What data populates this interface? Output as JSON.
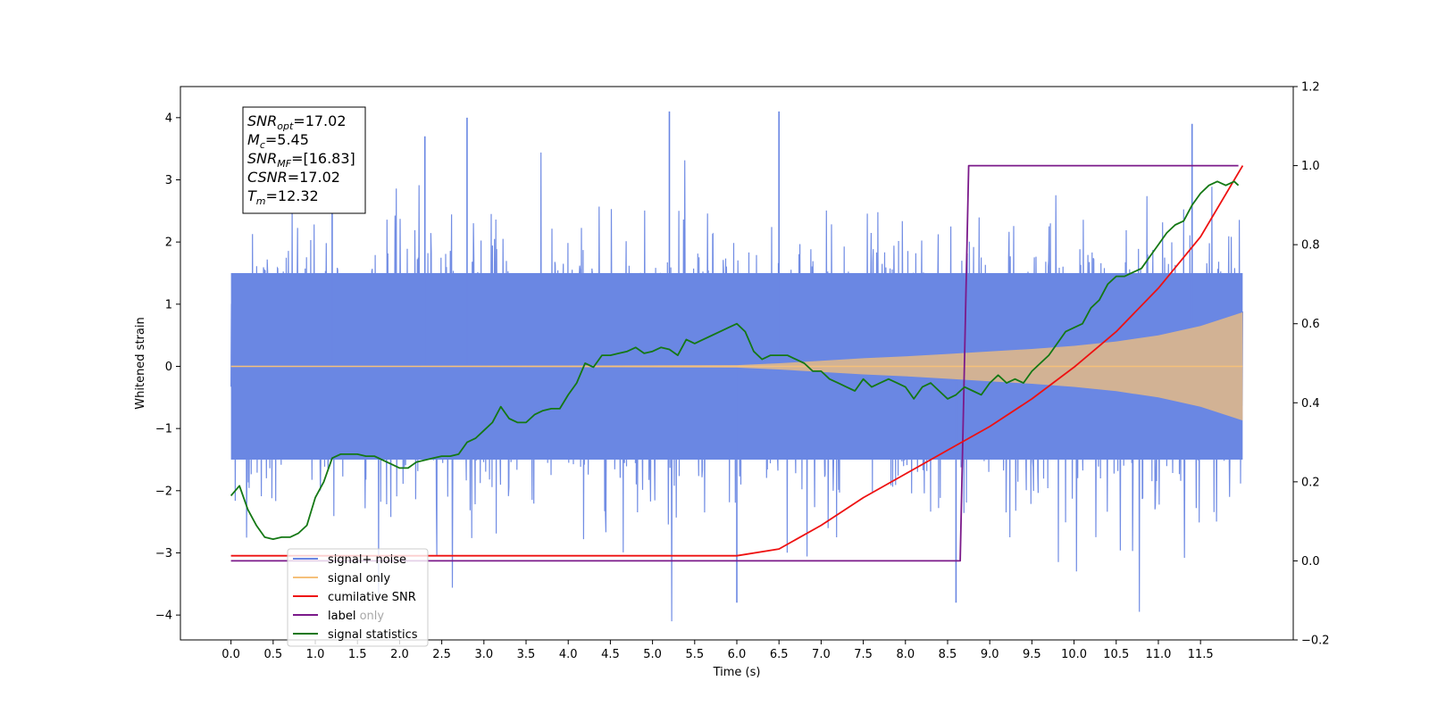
{
  "chart_data": {
    "type": "line",
    "title": "",
    "xlabel": "Time (s)",
    "ylabel": "Whitened strain",
    "xlim": [
      -0.6,
      12.6
    ],
    "ylim": [
      -4.4,
      4.5
    ],
    "y2lim": [
      -0.2,
      1.2
    ],
    "x_ticks": [
      0.0,
      0.5,
      1.0,
      1.5,
      2.0,
      2.5,
      3.0,
      3.5,
      4.0,
      4.5,
      5.0,
      5.5,
      6.0,
      6.5,
      7.0,
      7.5,
      8.0,
      8.5,
      9.0,
      9.5,
      10.0,
      10.5,
      11.0,
      11.5
    ],
    "x_tick_labels": [
      "0.0",
      "0.5",
      "1.0",
      "1.5",
      "2.0",
      "2.5",
      "3.0",
      "3.5",
      "4.0",
      "4.5",
      "5.0",
      "5.5",
      "6.0",
      "6.5",
      "7.0",
      "7.5",
      "8.0",
      "8.5",
      "9.0",
      "9.5",
      "10.0",
      "10.5",
      "11.0",
      "11.5"
    ],
    "y_ticks": [
      -4,
      -3,
      -2,
      -1,
      0,
      1,
      2,
      3,
      4
    ],
    "y_tick_labels": [
      "−4",
      "−3",
      "−2",
      "−1",
      "0",
      "1",
      "2",
      "3",
      "4"
    ],
    "y2_ticks": [
      -0.2,
      0.0,
      0.2,
      0.4,
      0.6,
      0.8,
      1.0,
      1.2
    ],
    "y2_tick_labels": [
      "−0.2",
      "0.0",
      "0.2",
      "0.4",
      "0.6",
      "0.8",
      "1.0",
      "1.2"
    ],
    "grid": false,
    "legend_position": "lower-left",
    "series": [
      {
        "name": "signal+ noise",
        "axis": "left",
        "color": "#6a87e3",
        "style": "dense noise band",
        "x_range": [
          0.0,
          12.0
        ],
        "envelope_peak_abs": 4.1,
        "core_band": [
          -1.5,
          1.5
        ],
        "highlighted_peaks": [
          {
            "x": 1.2,
            "y": 3.5
          },
          {
            "x": 2.3,
            "y": 3.7
          },
          {
            "x": 2.8,
            "y": 4.0
          },
          {
            "x": 5.2,
            "y": 4.1
          },
          {
            "x": 6.0,
            "y": -3.8
          },
          {
            "x": 6.5,
            "y": 4.1
          },
          {
            "x": 8.6,
            "y": -3.8
          },
          {
            "x": 11.4,
            "y": 3.9
          }
        ]
      },
      {
        "name": "signal only",
        "axis": "left",
        "color": "#f5c07a",
        "style": "chirp",
        "x": [
          0.0,
          6.0,
          6.5,
          7.0,
          7.5,
          8.0,
          8.5,
          9.0,
          9.5,
          10.0,
          10.5,
          11.0,
          11.5,
          12.0
        ],
        "amplitude": [
          0.0,
          0.02,
          0.05,
          0.09,
          0.13,
          0.16,
          0.2,
          0.24,
          0.28,
          0.33,
          0.4,
          0.5,
          0.65,
          0.87
        ]
      },
      {
        "name": "cumilative SNR",
        "axis": "right",
        "color": "#ee1111",
        "x": [
          0.0,
          6.0,
          6.5,
          7.0,
          7.5,
          8.0,
          8.5,
          9.0,
          9.5,
          10.0,
          10.5,
          11.0,
          11.5,
          12.0
        ],
        "y": [
          0.013,
          0.013,
          0.03,
          0.09,
          0.16,
          0.22,
          0.28,
          0.34,
          0.41,
          0.49,
          0.58,
          0.69,
          0.82,
          1.0
        ]
      },
      {
        "name": "label",
        "axis": "right",
        "color": "#7b1a8a",
        "x": [
          0.0,
          8.65,
          8.75,
          11.95
        ],
        "y": [
          0.0,
          0.0,
          1.0,
          1.0
        ]
      },
      {
        "name": "signal statistics",
        "axis": "right",
        "color": "#147814",
        "x": [
          0.0,
          0.1,
          0.2,
          0.3,
          0.4,
          0.5,
          0.6,
          0.7,
          0.8,
          0.9,
          1.0,
          1.1,
          1.2,
          1.3,
          1.4,
          1.5,
          1.6,
          1.7,
          1.8,
          1.9,
          2.0,
          2.1,
          2.2,
          2.3,
          2.4,
          2.5,
          2.6,
          2.7,
          2.8,
          2.9,
          3.0,
          3.1,
          3.2,
          3.3,
          3.4,
          3.5,
          3.6,
          3.7,
          3.8,
          3.9,
          4.0,
          4.1,
          4.2,
          4.3,
          4.4,
          4.5,
          4.6,
          4.7,
          4.8,
          4.9,
          5.0,
          5.1,
          5.2,
          5.3,
          5.4,
          5.5,
          5.6,
          5.7,
          5.8,
          5.9,
          6.0,
          6.1,
          6.2,
          6.3,
          6.4,
          6.5,
          6.6,
          6.7,
          6.8,
          6.9,
          7.0,
          7.1,
          7.2,
          7.3,
          7.4,
          7.5,
          7.6,
          7.7,
          7.8,
          7.9,
          8.0,
          8.1,
          8.2,
          8.3,
          8.4,
          8.5,
          8.6,
          8.7,
          8.8,
          8.9,
          9.0,
          9.1,
          9.2,
          9.3,
          9.4,
          9.5,
          9.6,
          9.7,
          9.8,
          9.9,
          10.0,
          10.1,
          10.2,
          10.3,
          10.4,
          10.5,
          10.6,
          10.7,
          10.8,
          10.9,
          11.0,
          11.1,
          11.2,
          11.3,
          11.4,
          11.5,
          11.6,
          11.7,
          11.8,
          11.9,
          11.95
        ],
        "y": [
          0.165,
          0.19,
          0.13,
          0.09,
          0.06,
          0.055,
          0.06,
          0.06,
          0.07,
          0.09,
          0.16,
          0.2,
          0.26,
          0.27,
          0.27,
          0.27,
          0.265,
          0.265,
          0.255,
          0.245,
          0.235,
          0.235,
          0.25,
          0.255,
          0.26,
          0.265,
          0.265,
          0.27,
          0.3,
          0.31,
          0.33,
          0.35,
          0.39,
          0.36,
          0.35,
          0.35,
          0.37,
          0.38,
          0.385,
          0.385,
          0.42,
          0.45,
          0.5,
          0.49,
          0.52,
          0.52,
          0.525,
          0.53,
          0.54,
          0.525,
          0.53,
          0.54,
          0.535,
          0.52,
          0.56,
          0.55,
          0.56,
          0.57,
          0.58,
          0.59,
          0.6,
          0.58,
          0.53,
          0.51,
          0.52,
          0.52,
          0.52,
          0.51,
          0.5,
          0.48,
          0.48,
          0.46,
          0.45,
          0.44,
          0.43,
          0.46,
          0.44,
          0.45,
          0.46,
          0.45,
          0.44,
          0.41,
          0.44,
          0.45,
          0.43,
          0.41,
          0.42,
          0.44,
          0.43,
          0.42,
          0.45,
          0.47,
          0.45,
          0.46,
          0.45,
          0.48,
          0.5,
          0.52,
          0.55,
          0.58,
          0.59,
          0.6,
          0.64,
          0.66,
          0.7,
          0.72,
          0.72,
          0.73,
          0.74,
          0.77,
          0.8,
          0.83,
          0.85,
          0.86,
          0.9,
          0.93,
          0.95,
          0.96,
          0.95,
          0.96,
          0.95
        ]
      }
    ],
    "legend": {
      "entries": [
        {
          "label": "signal+ noise",
          "color": "#6a87e3"
        },
        {
          "label": "signal only",
          "color": "#f5c07a"
        },
        {
          "label": "cumilative SNR",
          "color": "#ee1111"
        },
        {
          "label": "label",
          "color": "#7b1a8a"
        },
        {
          "label": "signal statistics",
          "color": "#147814"
        }
      ],
      "obscured_text": "label only"
    },
    "annotation": {
      "lines": [
        {
          "main": "SNR",
          "sub": "opt",
          "value": "=17.02"
        },
        {
          "main": "M",
          "sub": "c",
          "value": "=5.45"
        },
        {
          "main": "SNR",
          "sub": "MF",
          "value": "=[16.83]"
        },
        {
          "main": "CSNR",
          "sub": "",
          "value": "=17.02"
        },
        {
          "main": "T",
          "sub": "m",
          "value": "=12.32"
        }
      ]
    }
  }
}
